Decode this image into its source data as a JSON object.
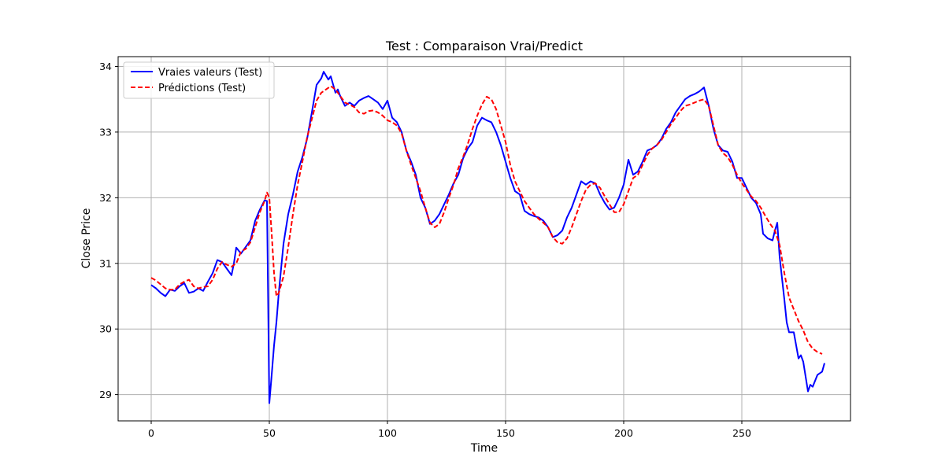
{
  "chart_data": {
    "type": "line",
    "title": "Test : Comparaison Vrai/Predict",
    "xlabel": "Time",
    "ylabel": "Close Price",
    "xlim": [
      -14,
      296
    ],
    "ylim": [
      28.6,
      34.15
    ],
    "xticks": [
      0,
      50,
      100,
      150,
      200,
      250
    ],
    "yticks": [
      29,
      30,
      31,
      32,
      33,
      34
    ],
    "grid": true,
    "legend_position": "top-left",
    "series": [
      {
        "name": "Vraies valeurs (Test)",
        "color": "#0000ff",
        "dash": "solid",
        "points": [
          [
            0,
            30.67
          ],
          [
            2,
            30.62
          ],
          [
            4,
            30.55
          ],
          [
            6,
            30.5
          ],
          [
            8,
            30.6
          ],
          [
            10,
            30.58
          ],
          [
            12,
            30.65
          ],
          [
            14,
            30.7
          ],
          [
            16,
            30.55
          ],
          [
            18,
            30.57
          ],
          [
            20,
            30.62
          ],
          [
            22,
            30.58
          ],
          [
            24,
            30.72
          ],
          [
            26,
            30.85
          ],
          [
            28,
            31.05
          ],
          [
            30,
            31.02
          ],
          [
            32,
            30.92
          ],
          [
            34,
            30.82
          ],
          [
            35,
            31.0
          ],
          [
            36,
            31.24
          ],
          [
            38,
            31.15
          ],
          [
            40,
            31.25
          ],
          [
            42,
            31.35
          ],
          [
            44,
            31.65
          ],
          [
            46,
            31.82
          ],
          [
            48,
            31.96
          ],
          [
            49,
            31.95
          ],
          [
            50,
            28.87
          ],
          [
            51,
            29.3
          ],
          [
            52,
            29.75
          ],
          [
            53,
            30.1
          ],
          [
            54,
            30.55
          ],
          [
            56,
            31.3
          ],
          [
            58,
            31.75
          ],
          [
            60,
            32.05
          ],
          [
            62,
            32.4
          ],
          [
            64,
            32.62
          ],
          [
            66,
            32.9
          ],
          [
            68,
            33.3
          ],
          [
            70,
            33.72
          ],
          [
            72,
            33.82
          ],
          [
            73,
            33.92
          ],
          [
            75,
            33.8
          ],
          [
            76,
            33.85
          ],
          [
            78,
            33.6
          ],
          [
            79,
            33.65
          ],
          [
            80,
            33.55
          ],
          [
            82,
            33.4
          ],
          [
            84,
            33.45
          ],
          [
            86,
            33.4
          ],
          [
            88,
            33.48
          ],
          [
            90,
            33.52
          ],
          [
            92,
            33.55
          ],
          [
            94,
            33.5
          ],
          [
            96,
            33.45
          ],
          [
            98,
            33.35
          ],
          [
            100,
            33.48
          ],
          [
            102,
            33.22
          ],
          [
            104,
            33.15
          ],
          [
            106,
            33.0
          ],
          [
            108,
            32.72
          ],
          [
            110,
            32.55
          ],
          [
            112,
            32.35
          ],
          [
            114,
            32.0
          ],
          [
            116,
            31.85
          ],
          [
            118,
            31.6
          ],
          [
            120,
            31.65
          ],
          [
            122,
            31.75
          ],
          [
            124,
            31.9
          ],
          [
            126,
            32.05
          ],
          [
            128,
            32.22
          ],
          [
            130,
            32.35
          ],
          [
            132,
            32.6
          ],
          [
            134,
            32.75
          ],
          [
            136,
            32.85
          ],
          [
            138,
            33.1
          ],
          [
            140,
            33.22
          ],
          [
            142,
            33.18
          ],
          [
            144,
            33.15
          ],
          [
            146,
            33.0
          ],
          [
            148,
            32.8
          ],
          [
            150,
            32.55
          ],
          [
            152,
            32.3
          ],
          [
            154,
            32.1
          ],
          [
            156,
            32.05
          ],
          [
            158,
            31.8
          ],
          [
            160,
            31.75
          ],
          [
            162,
            31.72
          ],
          [
            164,
            31.7
          ],
          [
            166,
            31.65
          ],
          [
            168,
            31.55
          ],
          [
            170,
            31.4
          ],
          [
            172,
            31.43
          ],
          [
            174,
            31.5
          ],
          [
            176,
            31.7
          ],
          [
            178,
            31.85
          ],
          [
            180,
            32.05
          ],
          [
            182,
            32.25
          ],
          [
            184,
            32.2
          ],
          [
            186,
            32.25
          ],
          [
            188,
            32.22
          ],
          [
            190,
            32.05
          ],
          [
            192,
            31.92
          ],
          [
            194,
            31.82
          ],
          [
            196,
            31.85
          ],
          [
            198,
            32.0
          ],
          [
            200,
            32.2
          ],
          [
            202,
            32.58
          ],
          [
            204,
            32.35
          ],
          [
            206,
            32.4
          ],
          [
            208,
            32.55
          ],
          [
            210,
            32.72
          ],
          [
            212,
            32.75
          ],
          [
            214,
            32.8
          ],
          [
            216,
            32.9
          ],
          [
            218,
            33.05
          ],
          [
            220,
            33.15
          ],
          [
            222,
            33.3
          ],
          [
            224,
            33.4
          ],
          [
            226,
            33.5
          ],
          [
            228,
            33.55
          ],
          [
            230,
            33.58
          ],
          [
            232,
            33.62
          ],
          [
            234,
            33.68
          ],
          [
            236,
            33.4
          ],
          [
            238,
            33.05
          ],
          [
            240,
            32.8
          ],
          [
            242,
            32.72
          ],
          [
            244,
            32.7
          ],
          [
            246,
            32.55
          ],
          [
            248,
            32.3
          ],
          [
            250,
            32.3
          ],
          [
            252,
            32.15
          ],
          [
            254,
            32.0
          ],
          [
            256,
            31.92
          ],
          [
            258,
            31.75
          ],
          [
            259,
            31.45
          ],
          [
            261,
            31.38
          ],
          [
            263,
            31.35
          ],
          [
            264,
            31.5
          ],
          [
            265,
            31.62
          ],
          [
            266,
            31.1
          ],
          [
            268,
            30.45
          ],
          [
            269,
            30.1
          ],
          [
            270,
            29.95
          ],
          [
            272,
            29.95
          ],
          [
            274,
            29.55
          ],
          [
            275,
            29.6
          ],
          [
            276,
            29.5
          ],
          [
            278,
            29.05
          ],
          [
            279,
            29.15
          ],
          [
            280,
            29.12
          ],
          [
            282,
            29.3
          ],
          [
            284,
            29.35
          ],
          [
            285,
            29.48
          ]
        ]
      },
      {
        "name": "Prédictions (Test)",
        "color": "#ff0000",
        "dash": "dashed",
        "points": [
          [
            0,
            30.78
          ],
          [
            2,
            30.74
          ],
          [
            4,
            30.68
          ],
          [
            6,
            30.62
          ],
          [
            8,
            30.6
          ],
          [
            10,
            30.6
          ],
          [
            12,
            30.68
          ],
          [
            14,
            30.72
          ],
          [
            16,
            30.75
          ],
          [
            18,
            30.65
          ],
          [
            20,
            30.62
          ],
          [
            22,
            30.64
          ],
          [
            24,
            30.65
          ],
          [
            26,
            30.75
          ],
          [
            28,
            30.92
          ],
          [
            30,
            31.02
          ],
          [
            32,
            30.98
          ],
          [
            34,
            30.95
          ],
          [
            36,
            31.0
          ],
          [
            38,
            31.18
          ],
          [
            40,
            31.22
          ],
          [
            42,
            31.32
          ],
          [
            44,
            31.55
          ],
          [
            46,
            31.78
          ],
          [
            48,
            31.95
          ],
          [
            49,
            32.08
          ],
          [
            50,
            32.0
          ],
          [
            51,
            31.45
          ],
          [
            52,
            30.85
          ],
          [
            53,
            30.5
          ],
          [
            54,
            30.55
          ],
          [
            56,
            30.8
          ],
          [
            58,
            31.25
          ],
          [
            60,
            31.75
          ],
          [
            62,
            32.2
          ],
          [
            64,
            32.55
          ],
          [
            66,
            32.92
          ],
          [
            68,
            33.2
          ],
          [
            70,
            33.48
          ],
          [
            72,
            33.6
          ],
          [
            74,
            33.65
          ],
          [
            76,
            33.7
          ],
          [
            78,
            33.65
          ],
          [
            80,
            33.55
          ],
          [
            82,
            33.45
          ],
          [
            84,
            33.42
          ],
          [
            86,
            33.38
          ],
          [
            88,
            33.3
          ],
          [
            90,
            33.28
          ],
          [
            92,
            33.32
          ],
          [
            94,
            33.33
          ],
          [
            96,
            33.3
          ],
          [
            98,
            33.25
          ],
          [
            100,
            33.18
          ],
          [
            102,
            33.15
          ],
          [
            104,
            33.1
          ],
          [
            106,
            32.98
          ],
          [
            108,
            32.72
          ],
          [
            110,
            32.5
          ],
          [
            112,
            32.3
          ],
          [
            114,
            32.1
          ],
          [
            116,
            31.85
          ],
          [
            118,
            31.62
          ],
          [
            120,
            31.55
          ],
          [
            122,
            31.6
          ],
          [
            124,
            31.78
          ],
          [
            126,
            32.0
          ],
          [
            128,
            32.2
          ],
          [
            130,
            32.45
          ],
          [
            132,
            32.62
          ],
          [
            134,
            32.82
          ],
          [
            136,
            33.05
          ],
          [
            138,
            33.25
          ],
          [
            140,
            33.42
          ],
          [
            142,
            33.54
          ],
          [
            144,
            33.5
          ],
          [
            146,
            33.35
          ],
          [
            148,
            33.1
          ],
          [
            150,
            32.85
          ],
          [
            152,
            32.5
          ],
          [
            154,
            32.25
          ],
          [
            156,
            32.1
          ],
          [
            158,
            31.95
          ],
          [
            160,
            31.85
          ],
          [
            162,
            31.75
          ],
          [
            164,
            31.68
          ],
          [
            166,
            31.62
          ],
          [
            168,
            31.55
          ],
          [
            170,
            31.4
          ],
          [
            172,
            31.32
          ],
          [
            174,
            31.3
          ],
          [
            176,
            31.38
          ],
          [
            178,
            31.55
          ],
          [
            180,
            31.75
          ],
          [
            182,
            31.95
          ],
          [
            184,
            32.12
          ],
          [
            186,
            32.2
          ],
          [
            188,
            32.22
          ],
          [
            190,
            32.15
          ],
          [
            192,
            32.02
          ],
          [
            194,
            31.9
          ],
          [
            196,
            31.78
          ],
          [
            198,
            31.78
          ],
          [
            200,
            31.9
          ],
          [
            202,
            32.1
          ],
          [
            204,
            32.3
          ],
          [
            206,
            32.35
          ],
          [
            208,
            32.5
          ],
          [
            210,
            32.65
          ],
          [
            212,
            32.75
          ],
          [
            214,
            32.8
          ],
          [
            216,
            32.88
          ],
          [
            218,
            33.0
          ],
          [
            220,
            33.12
          ],
          [
            222,
            33.22
          ],
          [
            224,
            33.32
          ],
          [
            226,
            33.4
          ],
          [
            228,
            33.42
          ],
          [
            230,
            33.45
          ],
          [
            232,
            33.48
          ],
          [
            234,
            33.5
          ],
          [
            236,
            33.4
          ],
          [
            238,
            33.1
          ],
          [
            240,
            32.8
          ],
          [
            242,
            32.68
          ],
          [
            244,
            32.62
          ],
          [
            246,
            32.5
          ],
          [
            248,
            32.35
          ],
          [
            250,
            32.22
          ],
          [
            252,
            32.12
          ],
          [
            254,
            32.02
          ],
          [
            256,
            31.95
          ],
          [
            258,
            31.85
          ],
          [
            260,
            31.72
          ],
          [
            262,
            31.6
          ],
          [
            264,
            31.5
          ],
          [
            266,
            31.28
          ],
          [
            268,
            30.85
          ],
          [
            270,
            30.48
          ],
          [
            272,
            30.3
          ],
          [
            274,
            30.12
          ],
          [
            276,
            29.98
          ],
          [
            278,
            29.8
          ],
          [
            280,
            29.7
          ],
          [
            282,
            29.65
          ],
          [
            284,
            29.62
          ]
        ]
      }
    ]
  }
}
